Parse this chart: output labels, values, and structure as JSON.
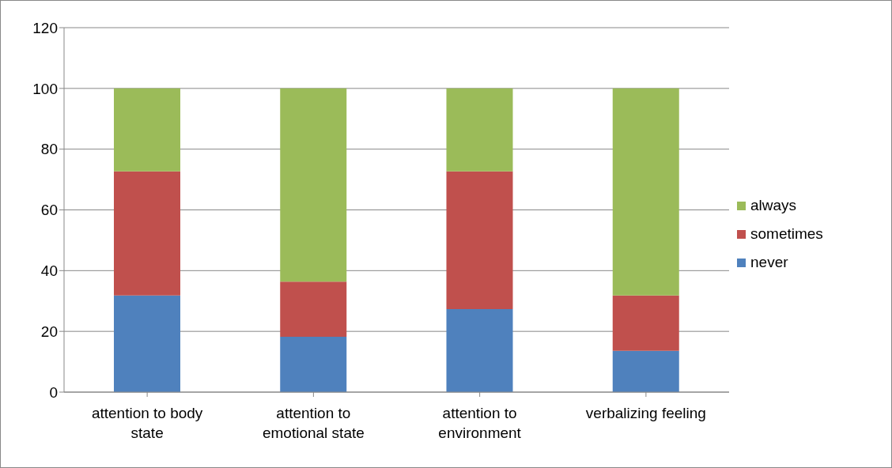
{
  "chart_data": {
    "type": "bar",
    "stacked": true,
    "categories": [
      "attention to body state",
      "attention to emotional state",
      "attention to environment",
      "verbalizing feeling"
    ],
    "series": [
      {
        "name": "never",
        "color": "#4f81bd",
        "values": [
          31.8,
          18.2,
          27.3,
          13.6
        ]
      },
      {
        "name": "sometimes",
        "color": "#c0504d",
        "values": [
          40.9,
          18.2,
          45.4,
          18.2
        ]
      },
      {
        "name": "always",
        "color": "#9bbb59",
        "values": [
          27.3,
          63.6,
          27.3,
          68.2
        ]
      }
    ],
    "ylim": [
      0,
      120
    ],
    "yticks": [
      0,
      20,
      40,
      60,
      80,
      100,
      120
    ],
    "grid": "y",
    "legend": "right"
  }
}
